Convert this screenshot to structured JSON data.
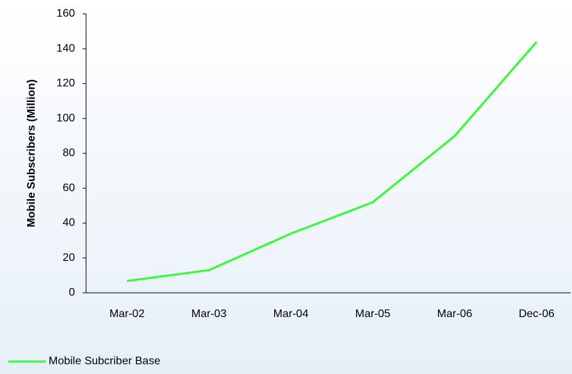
{
  "chart_data": {
    "type": "line",
    "y_label": "Mobile Subscribers (Million)",
    "categories": [
      "Mar-02",
      "Mar-03",
      "Mar-04",
      "Mar-05",
      "Mar-06",
      "Dec-06"
    ],
    "series": [
      {
        "name": "Mobile Subcriber Base",
        "color": "#33ff33",
        "values": [
          6.8,
          13,
          34,
          52,
          90,
          144
        ]
      }
    ],
    "ylim": [
      0,
      160
    ],
    "yticks": [
      0,
      20,
      40,
      60,
      80,
      100,
      120,
      140,
      160
    ],
    "grid": false,
    "legend": "bottom-left"
  }
}
